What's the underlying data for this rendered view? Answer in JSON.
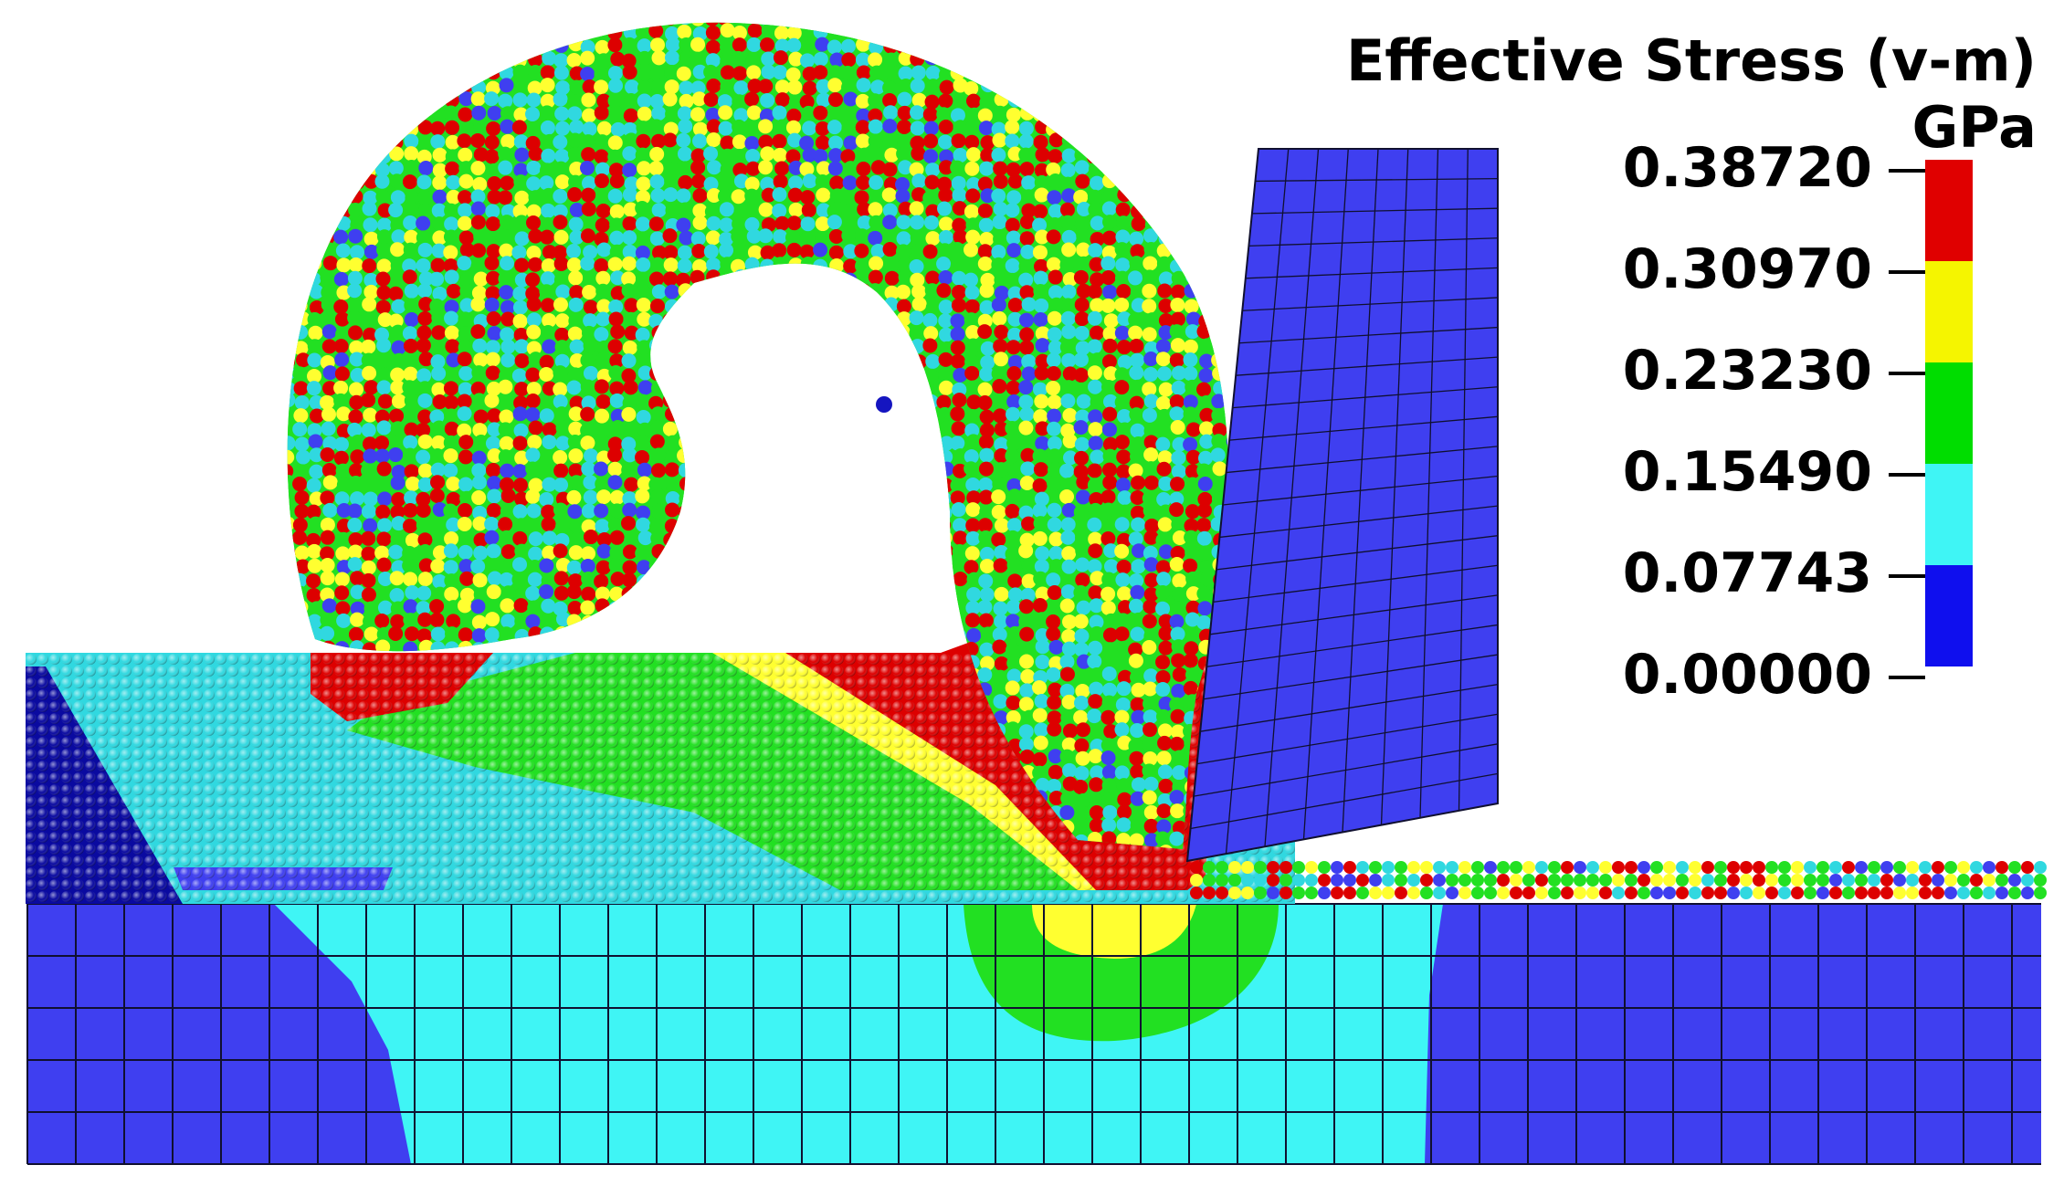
{
  "legend": {
    "title": "Effective Stress (v-m) GPa",
    "ticks": [
      "0.38720",
      "0.30970",
      "0.23230",
      "0.15490",
      "0.07743",
      "0.00000"
    ],
    "bands": [
      {
        "from": 0.3097,
        "to": 0.3872,
        "color": "#e00000"
      },
      {
        "from": 0.2323,
        "to": 0.3097,
        "color": "#f5f500"
      },
      {
        "from": 0.1549,
        "to": 0.2323,
        "color": "#00dd00"
      },
      {
        "from": 0.07743,
        "to": 0.1549,
        "color": "#3ff5f5"
      },
      {
        "from": 0.0,
        "to": 0.07743,
        "color": "#0f0fee"
      }
    ]
  },
  "colors": {
    "blue": "#3f3ff0",
    "dark_blue": "#0a0aa0",
    "cyan": "#3ff5f5",
    "particle_cyan": "#30d8e0",
    "green": "#22e022",
    "yellow": "#ffff30",
    "red": "#dd0000",
    "mesh_line": "#101030"
  },
  "components": [
    "cutting-tool-mesh",
    "workpiece-particles",
    "chip-particles",
    "substrate-fe-mesh",
    "stress-legend"
  ]
}
